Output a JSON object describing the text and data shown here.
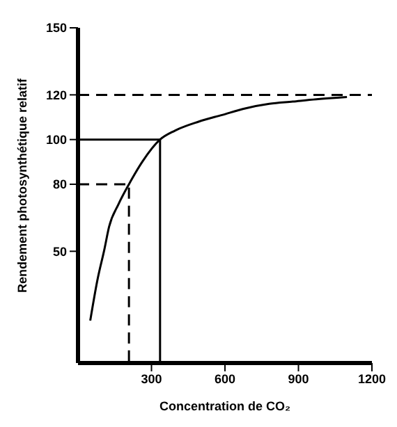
{
  "chart_data": {
    "type": "line",
    "xlabel": "Concentration de CO₂",
    "ylabel": "Rendement photosynthétique relatif",
    "xlim": [
      0,
      1200
    ],
    "ylim": [
      0,
      150
    ],
    "xticks": [
      300,
      600,
      900,
      1200
    ],
    "yticks": [
      50,
      80,
      100,
      120,
      150
    ],
    "grid": false,
    "legend": false,
    "marker": "none",
    "series": [
      {
        "color": "#000000",
        "line_style": "solid",
        "x": [
          50,
          79,
          108,
          127,
          165,
          208,
          262,
          335,
          396,
          492,
          588,
          685,
          781,
          877,
          973,
          1098
        ],
        "values": [
          19,
          37,
          51,
          61,
          71,
          80,
          90,
          100,
          104,
          108,
          111,
          114,
          116,
          117,
          118,
          119
        ]
      },
      {
        "color": "#000000",
        "line_style": "solid",
        "x": [
          0,
          335,
          335
        ],
        "values": [
          100,
          100,
          0
        ]
      },
      {
        "color": "#000000",
        "line_style": "dashed",
        "x": [
          0,
          208,
          208
        ],
        "values": [
          80,
          80,
          0
        ]
      }
    ],
    "ref_lines": [
      {
        "axis": "y",
        "value": 120,
        "line_style": "dashed",
        "color": "#000000"
      }
    ]
  }
}
